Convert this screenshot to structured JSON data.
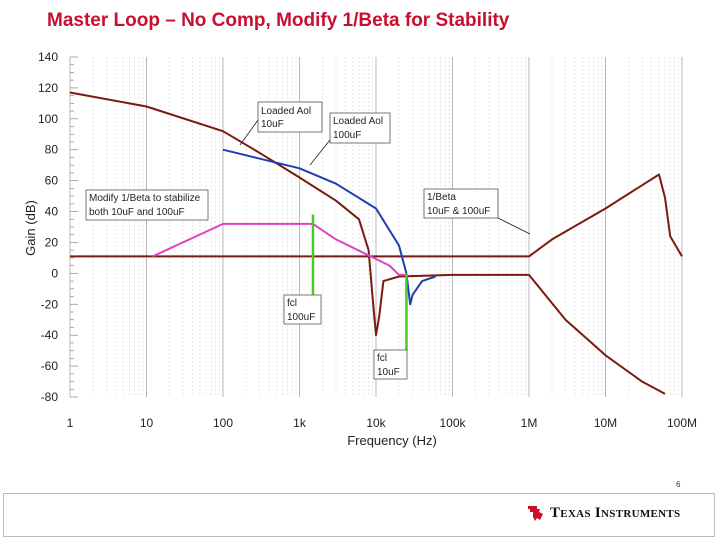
{
  "slide": {
    "title": "Master Loop – No Comp, Modify 1/Beta for Stability",
    "page_number": "6",
    "brand": "Texas Instruments",
    "title_color": "#c8102e"
  },
  "chart_data": {
    "type": "line",
    "xscale": "log",
    "xlim": [
      1,
      100000000
    ],
    "ylim": [
      -80,
      140
    ],
    "ylabel": "Gain (dB)",
    "xlabel": "Frequency (Hz)",
    "x_tick_labels": [
      "1",
      "10",
      "100",
      "1k",
      "10k",
      "100k",
      "1M",
      "10M",
      "100M"
    ],
    "y_tick_labels": [
      "140",
      "120",
      "100",
      "80",
      "60",
      "40",
      "20",
      "0",
      "-20",
      "-40",
      "-60",
      "-80"
    ],
    "grid": true,
    "series": [
      {
        "color": "#7a1a10",
        "points": [
          [
            1,
            117
          ],
          [
            10,
            108
          ],
          [
            100,
            92
          ],
          [
            300,
            78
          ],
          [
            1000,
            62
          ],
          [
            3000,
            47
          ],
          [
            6000,
            35
          ],
          [
            8000,
            15
          ],
          [
            9000,
            -15
          ],
          [
            10000,
            -40
          ],
          [
            11000,
            -28
          ],
          [
            12500,
            -5
          ],
          [
            20000,
            -2
          ],
          [
            100000,
            -1
          ],
          [
            300000,
            -1
          ],
          [
            1000000,
            -1
          ],
          [
            3000000,
            -30
          ],
          [
            10000000,
            -53
          ],
          [
            30000000,
            -70
          ],
          [
            60000000,
            -78
          ]
        ]
      },
      {
        "color": "#7a1a10",
        "points": [
          [
            1,
            11
          ],
          [
            1000000,
            11
          ],
          [
            2000000,
            22
          ],
          [
            10000000,
            42
          ],
          [
            50000000,
            64
          ],
          [
            60000000,
            49
          ],
          [
            70000000,
            24
          ],
          [
            100000000,
            11
          ]
        ]
      },
      {
        "color": "#1f3fb0",
        "points": [
          [
            100,
            80
          ],
          [
            1000,
            68
          ],
          [
            3000,
            58
          ],
          [
            10000,
            42
          ],
          [
            20000,
            18
          ],
          [
            25000,
            0
          ],
          [
            28000,
            -20
          ],
          [
            30000,
            -14
          ],
          [
            40000,
            -5
          ],
          [
            60000,
            -2
          ]
        ]
      },
      {
        "color": "#e040c8",
        "points": [
          [
            12,
            11
          ],
          [
            100,
            32
          ],
          [
            1500,
            32
          ],
          [
            3000,
            22
          ],
          [
            15000,
            5
          ],
          [
            20000,
            -1
          ],
          [
            25000,
            -1
          ]
        ]
      }
    ],
    "markers": [
      {
        "color": "#44cc22",
        "x": 1500,
        "y_top": 38,
        "y_bottom": -20
      },
      {
        "color": "#44cc22",
        "x": 25000,
        "y_top": 0,
        "y_bottom": -50
      }
    ],
    "annotations": [
      {
        "text": [
          "Loaded Aol",
          "10uF"
        ]
      },
      {
        "text": [
          "Loaded Aol",
          "100uF"
        ]
      },
      {
        "text": [
          "Modify 1/Beta to stabilize",
          "both 10uF and 100uF"
        ]
      },
      {
        "text": [
          "1/Beta",
          "10uF & 100uF"
        ]
      },
      {
        "text": [
          "fcl",
          "100uF"
        ]
      },
      {
        "text": [
          "fcl",
          "10uF"
        ]
      }
    ]
  }
}
